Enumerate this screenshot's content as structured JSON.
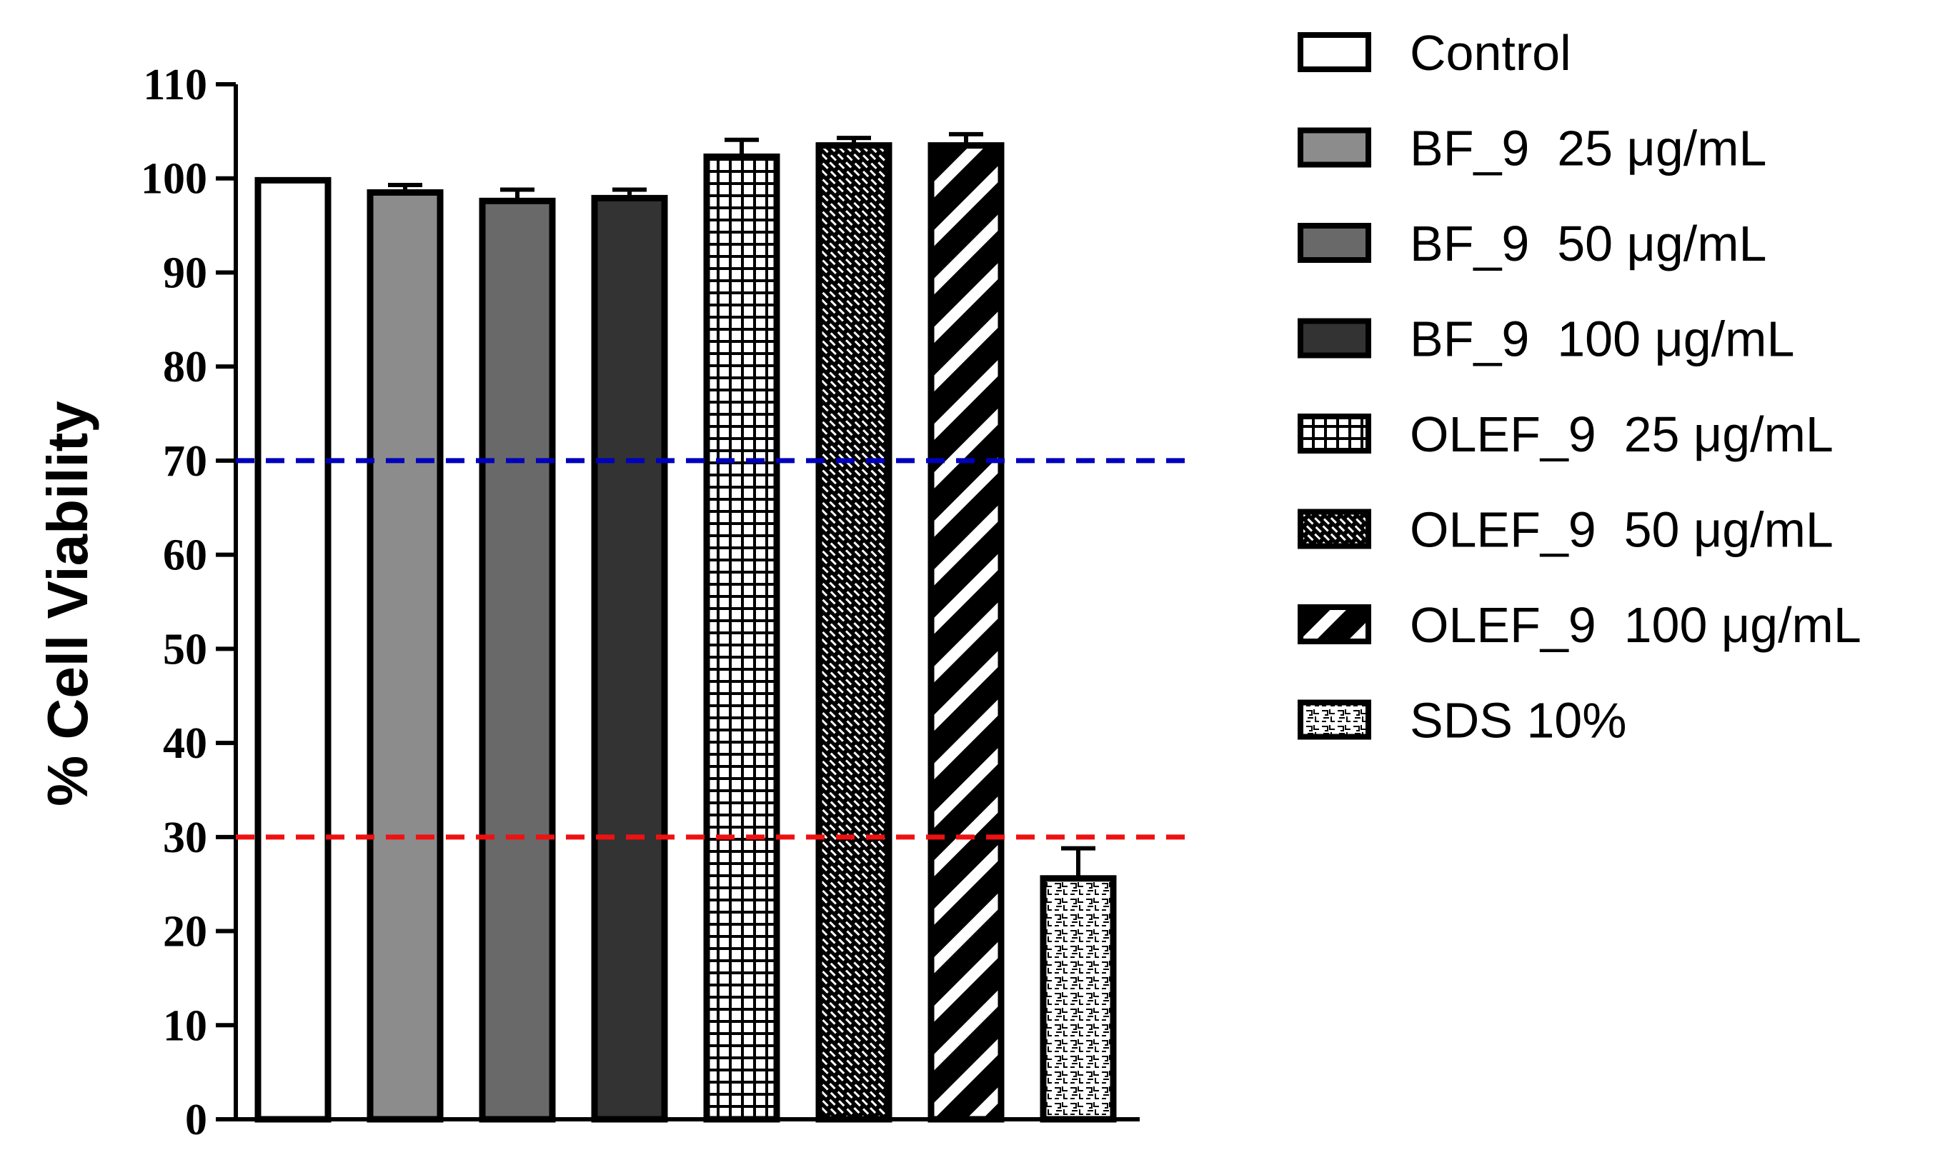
{
  "chart_data": {
    "type": "bar",
    "title": "",
    "xlabel": "",
    "ylabel": "% Cell Viability",
    "ylim": [
      0,
      110
    ],
    "yticks": [
      0,
      10,
      20,
      30,
      40,
      50,
      60,
      70,
      80,
      90,
      100,
      110
    ],
    "grid": false,
    "legend_position": "right",
    "bars": [
      {
        "name": "Control",
        "value": 99.8,
        "error": 0,
        "fill": "#ffffff",
        "pattern": "none"
      },
      {
        "name": "BF_9  25 μg/mL",
        "value": 98.5,
        "error": 0.8,
        "fill": "#8c8c8c",
        "pattern": "none"
      },
      {
        "name": "BF_9  50 μg/mL",
        "value": 97.6,
        "error": 1.2,
        "fill": "#696969",
        "pattern": "none"
      },
      {
        "name": "BF_9  100 μg/mL",
        "value": 97.9,
        "error": 0.9,
        "fill": "#333333",
        "pattern": "none"
      },
      {
        "name": "OLEF_9  25 μg/mL",
        "value": 102.3,
        "error": 1.8,
        "fill": "#000000",
        "pattern": "grid"
      },
      {
        "name": "OLEF_9  50 μg/mL",
        "value": 103.5,
        "error": 0.8,
        "fill": "#000000",
        "pattern": "crosshatch"
      },
      {
        "name": "OLEF_9  100 μg/mL",
        "value": 103.5,
        "error": 1.2,
        "fill": "#000000",
        "pattern": "diagonal"
      },
      {
        "name": "SDS 10%",
        "value": 25.6,
        "error": 3.2,
        "fill": "#ffffff",
        "pattern": "maze"
      }
    ],
    "reference_lines": [
      {
        "value": 70,
        "color": "#0000bb"
      },
      {
        "value": 30,
        "color": "#ee1111"
      }
    ]
  }
}
